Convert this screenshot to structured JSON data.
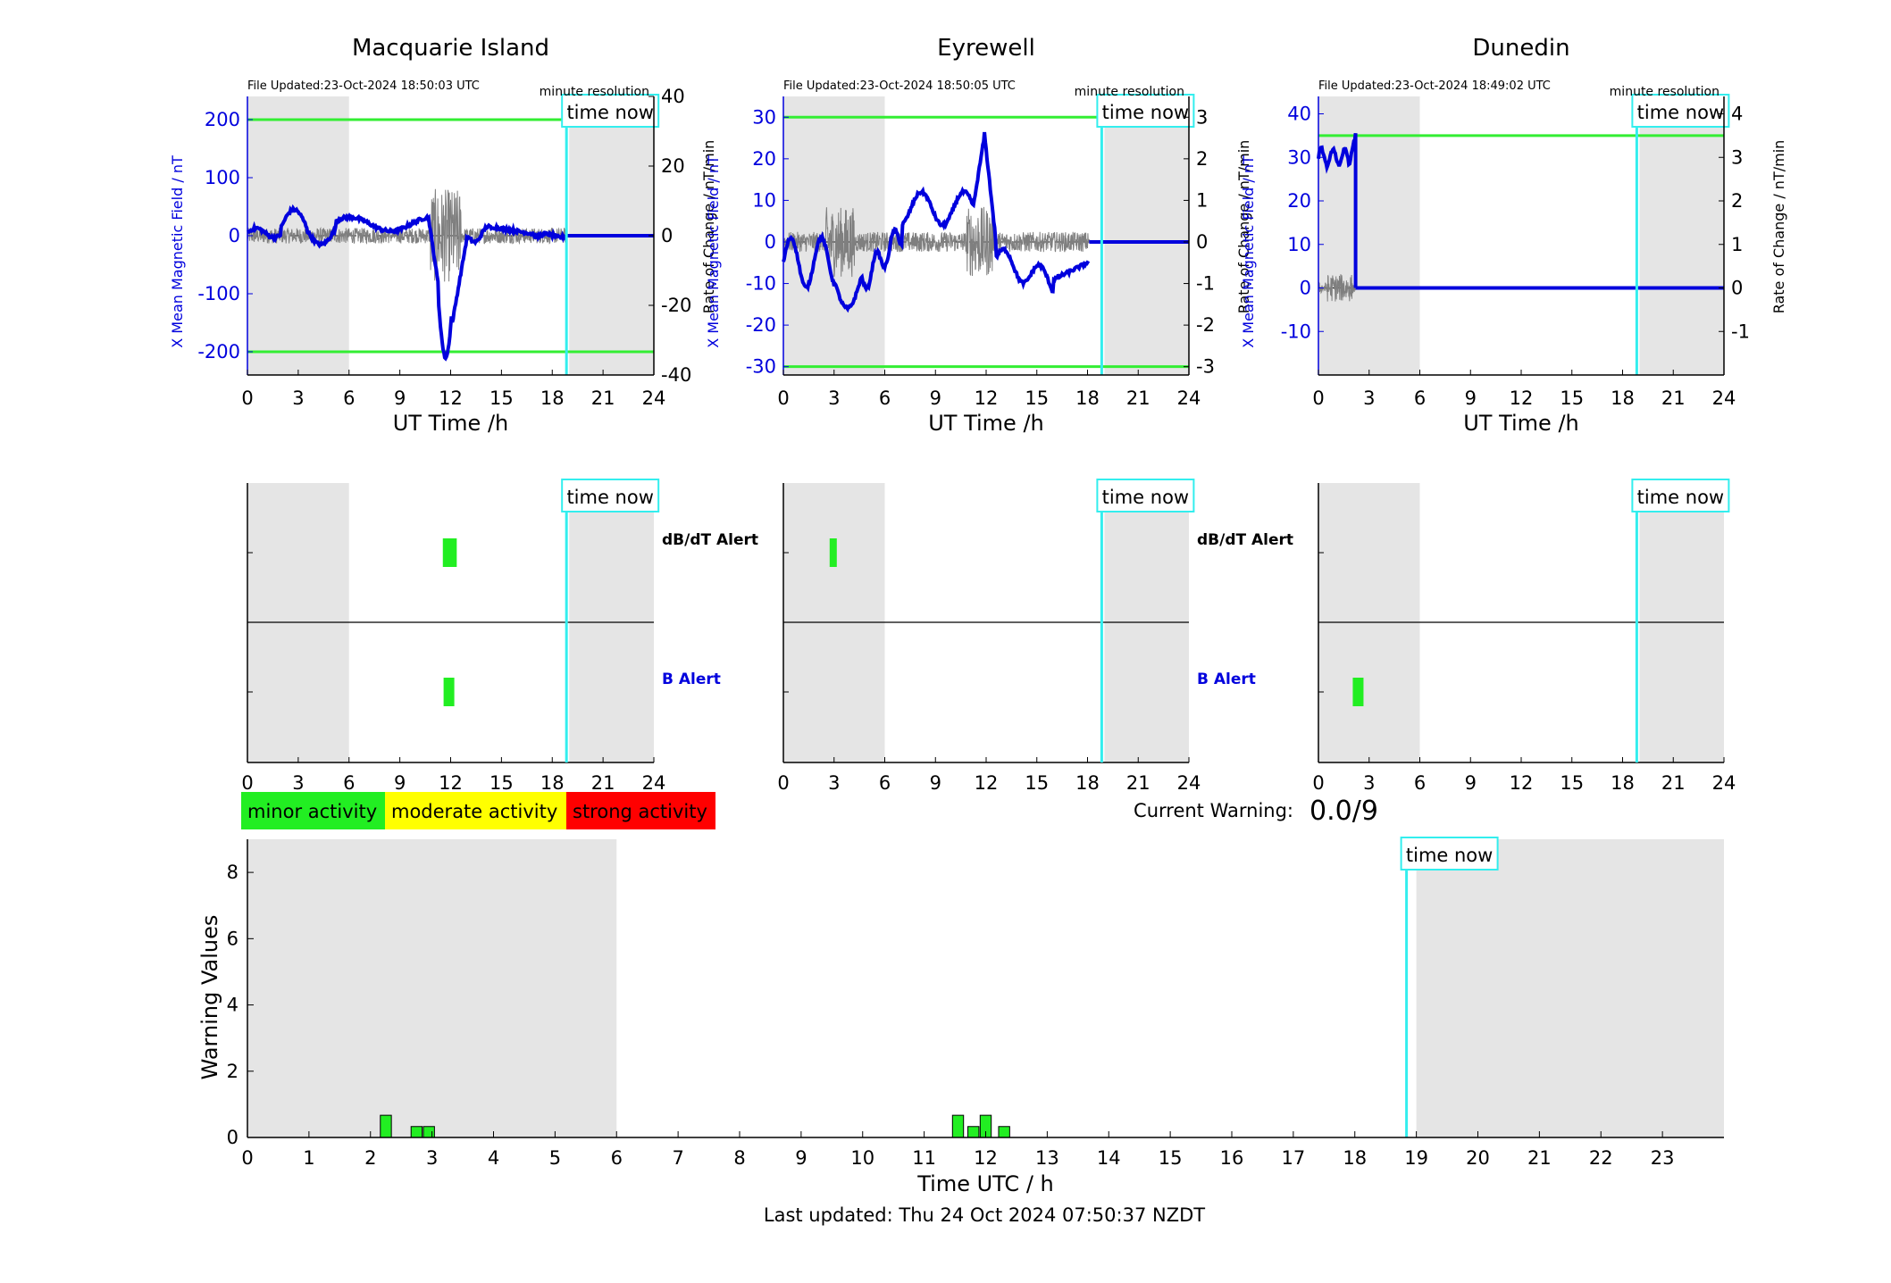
{
  "time_now_label": "time now",
  "colors": {
    "nighttime_shade": "#e5e5e5",
    "x_field": "#0000dd",
    "rate": "#7f7f7f",
    "threshold": "#33ee33",
    "time_now": "#33eeee",
    "alert_bar": "#22ee22",
    "minor": "#22ee22",
    "moderate": "#ffff00",
    "strong": "#ff0000"
  },
  "time_now_h": 18.84,
  "stations": [
    {
      "title": "Macquarie Island",
      "file_updated": "File Updated:23-Oct-2024 18:50:03 UTC",
      "resolution": "minute resolution",
      "left_ylim": [
        -240,
        240
      ],
      "left_ticks": [
        -200,
        -100,
        0,
        100,
        200
      ],
      "right_ylim": [
        -40,
        40
      ],
      "right_ticks": [
        -40,
        -20,
        0,
        20,
        40
      ],
      "thresholds": [
        200,
        -200
      ],
      "night_shading": [
        [
          0,
          6
        ],
        [
          19,
          24
        ]
      ],
      "data_end_h": 18.84,
      "dbdt_alert_h": [
        11.75,
        12.15
      ],
      "b_alert_h": [
        11.9
      ]
    },
    {
      "title": "Eyrewell",
      "file_updated": "File Updated:23-Oct-2024 18:50:05 UTC",
      "resolution": "minute resolution",
      "left_ylim": [
        -32,
        35
      ],
      "left_ticks": [
        -30,
        -20,
        -10,
        0,
        10,
        20,
        30
      ],
      "right_ylim": [
        -3.2,
        3.5
      ],
      "right_ticks": [
        -3,
        -2,
        -1,
        0,
        1,
        2,
        3
      ],
      "thresholds": [
        30,
        -30
      ],
      "night_shading": [
        [
          0,
          6
        ],
        [
          19,
          24
        ]
      ],
      "data_end_h": 18.1,
      "dbdt_alert_h": [
        2.95
      ],
      "b_alert_h": []
    },
    {
      "title": "Dunedin",
      "file_updated": "File Updated:23-Oct-2024 18:49:02 UTC",
      "resolution": "minute resolution",
      "left_ylim": [
        -20,
        44
      ],
      "left_ticks": [
        -10,
        0,
        10,
        20,
        30,
        40
      ],
      "right_ylim": [
        -2,
        4.4
      ],
      "right_ticks": [
        -1,
        0,
        1,
        2,
        3,
        4
      ],
      "thresholds": [
        35
      ],
      "night_shading": [
        [
          0,
          6
        ],
        [
          19,
          24
        ]
      ],
      "data_end_h": 2.2,
      "dbdt_alert_h": [],
      "b_alert_h": [
        2.35
      ]
    }
  ],
  "left_axis_label": "X Mean Magnetic Field / nT",
  "right_axis_label": "Rate of Change / nT/min",
  "ut_xlabel": "UT Time /h",
  "hour_ticks": [
    0,
    3,
    6,
    9,
    12,
    15,
    18,
    21,
    24
  ],
  "alert_labels": {
    "dbdt": "dB/dT Alert",
    "b": "B Alert"
  },
  "legend": [
    "minor activity",
    "moderate activity",
    "strong activity"
  ],
  "current_warning": {
    "label": "Current Warning:",
    "value": "0.0/9"
  },
  "chart_data": {
    "type": "bar",
    "x": [
      2.25,
      2.75,
      2.95,
      11.55,
      11.8,
      12.0,
      12.3
    ],
    "values": [
      0.67,
      0.33,
      0.33,
      0.67,
      0.33,
      0.67,
      0.33
    ],
    "xlabel": "Time UTC / h",
    "ylabel": "Warning Values",
    "xlim": [
      0,
      24
    ],
    "ylim": [
      0,
      9
    ],
    "xticks": [
      0,
      1,
      2,
      3,
      4,
      5,
      6,
      7,
      8,
      9,
      10,
      11,
      12,
      13,
      14,
      15,
      16,
      17,
      18,
      19,
      20,
      21,
      22,
      23
    ],
    "yticks": [
      0,
      2,
      4,
      6,
      8
    ],
    "night_shading": [
      [
        0,
        6
      ],
      [
        19,
        24
      ]
    ]
  },
  "footer": "Last updated: Thu 24 Oct 2024 07:50:37 NZDT"
}
